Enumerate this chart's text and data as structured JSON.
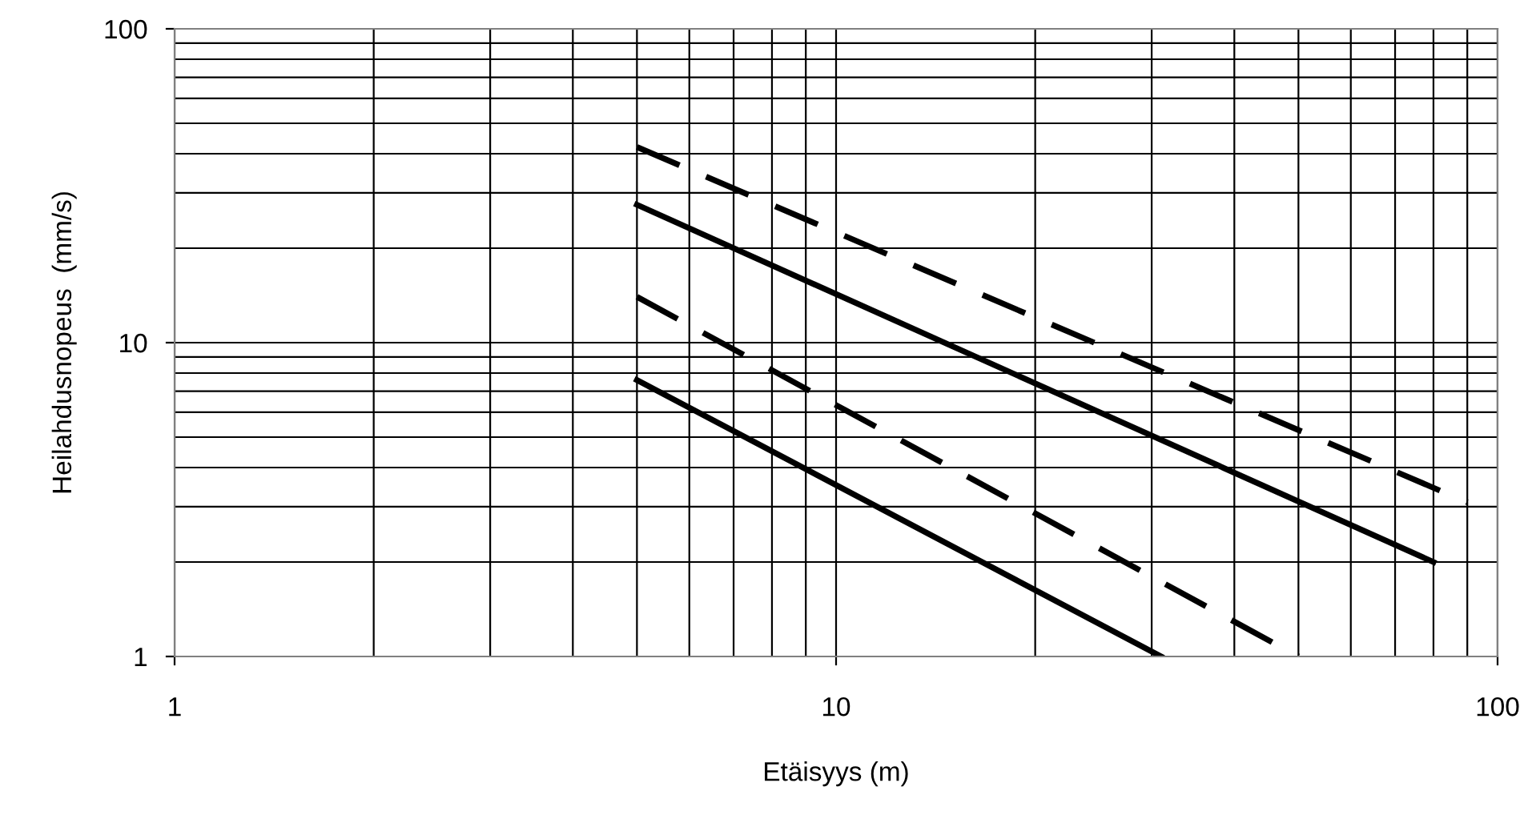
{
  "chart_data": {
    "type": "line",
    "xlabel": "Etäisyys (m)",
    "ylabel": "Heilahdusnopeus  (mm/s)",
    "log": "xy",
    "grid": true,
    "marker": "none",
    "xlim": [
      1,
      100
    ],
    "ylim": [
      1,
      100
    ],
    "xticks": [
      1,
      10,
      100
    ],
    "yticks": [
      1,
      10,
      100
    ],
    "series": [
      {
        "color": "#000000",
        "line_style": "dashed",
        "x": [
          5,
          90
        ],
        "values": [
          42,
          3.1
        ]
      },
      {
        "color": "#000000",
        "line_style": "solid",
        "x": [
          5,
          80
        ],
        "values": [
          27.5,
          2
        ]
      },
      {
        "color": "#000000",
        "line_style": "dashed",
        "x": [
          5,
          50
        ],
        "values": [
          14,
          1
        ]
      },
      {
        "color": "#000000",
        "line_style": "solid",
        "x": [
          5,
          31
        ],
        "values": [
          7.6,
          1
        ]
      }
    ]
  }
}
